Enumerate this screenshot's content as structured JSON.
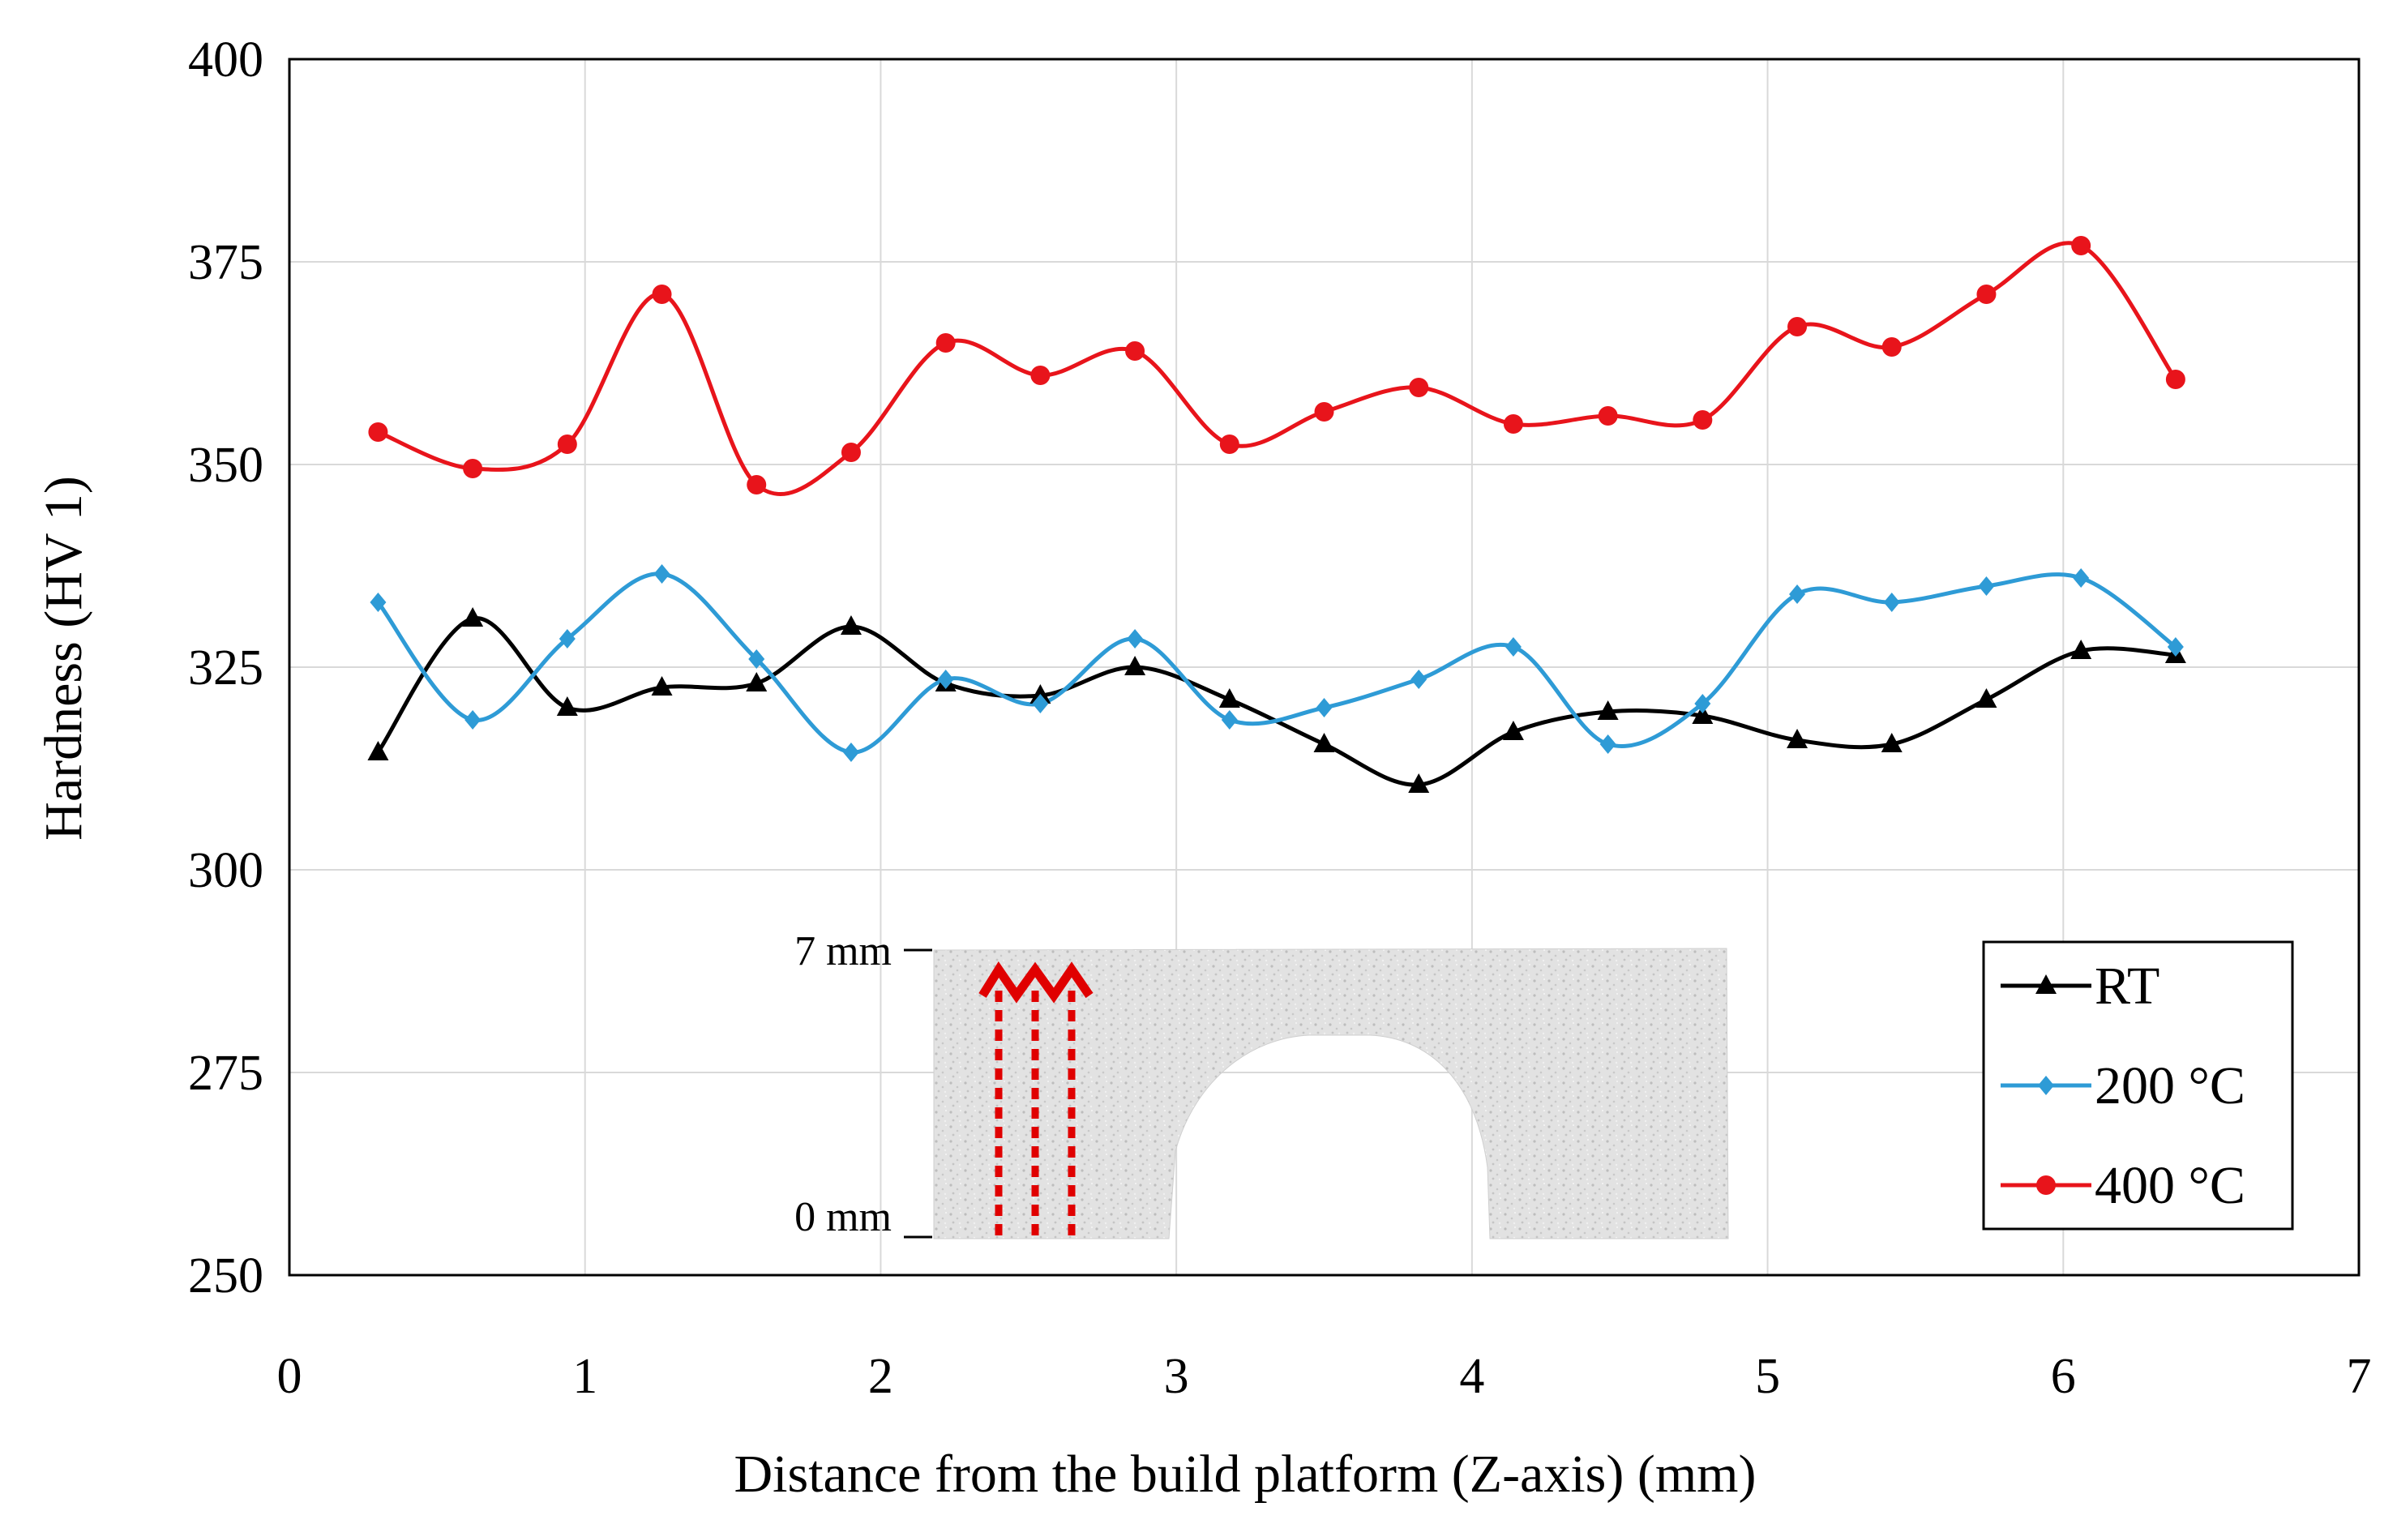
{
  "chart_data": {
    "type": "line",
    "title": "",
    "xlabel": "Distance from the build platform (Z-axis) (mm)",
    "ylabel": "Hardness (HV 1)",
    "xlim": [
      0,
      7
    ],
    "ylim": [
      250,
      400
    ],
    "xticks": [
      0,
      1,
      2,
      3,
      4,
      5,
      6,
      7
    ],
    "yticks": [
      250,
      275,
      300,
      325,
      350,
      375,
      400
    ],
    "grid": true,
    "legend_position": "bottom-right",
    "x": [
      0.3,
      0.62,
      0.94,
      1.26,
      1.58,
      1.9,
      2.22,
      2.54,
      2.86,
      3.18,
      3.5,
      3.82,
      4.14,
      4.46,
      4.78,
      5.1,
      5.42,
      5.74,
      6.06,
      6.38
    ],
    "series": [
      {
        "name": "RT",
        "color": "#000000",
        "marker": "triangle",
        "values": [
          314.5,
          331,
          320,
          322.5,
          323,
          330,
          323,
          321.5,
          325,
          321,
          315.5,
          310.5,
          317,
          319.5,
          319,
          316,
          315.5,
          321,
          327,
          326.5
        ]
      },
      {
        "name": "200 °C",
        "color": "#2e9bd6",
        "marker": "diamond",
        "values": [
          333,
          318.5,
          328.5,
          336.5,
          326,
          314.5,
          323.5,
          320.5,
          328.5,
          318.5,
          320,
          323.5,
          327.5,
          315.5,
          320.5,
          334,
          333,
          335,
          336,
          327.5
        ]
      },
      {
        "name": "400 °C",
        "color": "#e8141b",
        "marker": "circle",
        "values": [
          354,
          349.5,
          352.5,
          371,
          347.5,
          351.5,
          365,
          361,
          364,
          352.5,
          356.5,
          359.5,
          355,
          356,
          355.5,
          367,
          364.5,
          371,
          377,
          360.5
        ]
      }
    ],
    "inset": {
      "top_label": "7 mm",
      "bottom_label": "0 mm",
      "line_color": "#e00000"
    }
  }
}
